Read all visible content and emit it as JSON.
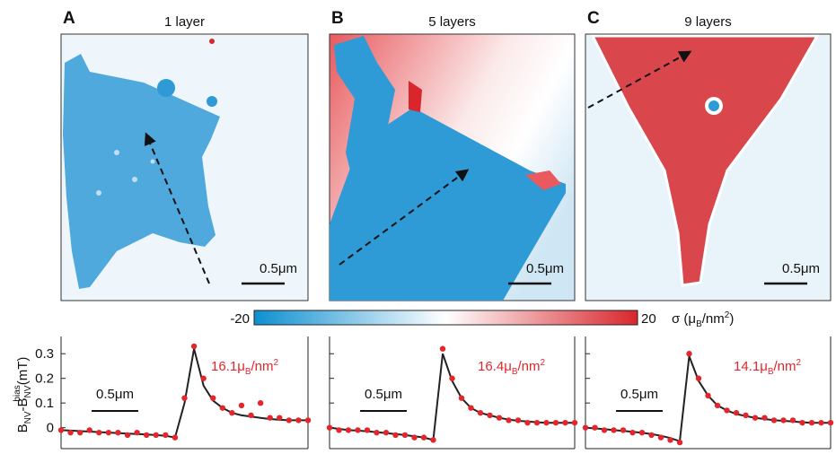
{
  "colorbar": {
    "min": -20,
    "max": 20,
    "label": [
      "σ (μ",
      "B",
      "/nm",
      "2",
      ")"
    ]
  },
  "chart_data": [
    {
      "type": "scatter",
      "panel": "A",
      "title": "1 layer",
      "map_scale": "0.5μm",
      "scale": "0.5μm",
      "ylabel": [
        "B",
        "NV",
        "-B",
        "NV",
        "bias",
        "(mT)"
      ],
      "annotation": [
        "16.1μ",
        "B",
        "/nm",
        "2"
      ],
      "x": [
        0,
        0.1,
        0.2,
        0.3,
        0.4,
        0.5,
        0.6,
        0.7,
        0.8,
        0.9,
        1.0,
        1.1,
        1.2,
        1.3,
        1.4,
        1.5,
        1.6,
        1.7,
        1.8,
        1.9,
        2.0,
        2.1,
        2.2,
        2.3,
        2.4,
        2.5,
        2.6
      ],
      "series": [
        {
          "type": "scatter",
          "color": "#e3262b",
          "values": [
            -0.01,
            -0.02,
            -0.02,
            -0.01,
            -0.02,
            -0.02,
            -0.02,
            -0.03,
            -0.02,
            -0.03,
            -0.03,
            -0.03,
            -0.04,
            0.12,
            0.33,
            0.2,
            0.12,
            0.08,
            0.06,
            0.09,
            0.05,
            0.1,
            0.04,
            0.04,
            0.03,
            0.03,
            0.03
          ]
        },
        {
          "type": "line",
          "color": "#222222",
          "values": [
            -0.01,
            -0.012,
            -0.014,
            -0.016,
            -0.018,
            -0.02,
            -0.022,
            -0.024,
            -0.026,
            -0.028,
            -0.03,
            -0.033,
            -0.04,
            0.1,
            0.32,
            0.17,
            0.11,
            0.08,
            0.06,
            0.05,
            0.045,
            0.04,
            0.035,
            0.032,
            0.03,
            0.03,
            0.03
          ]
        }
      ],
      "xlim": [
        0,
        2.6
      ],
      "ylim": [
        -0.085,
        0.37
      ],
      "yticks": [
        0,
        0.1,
        0.2,
        0.3
      ]
    },
    {
      "type": "scatter",
      "panel": "B",
      "title": "5 layers",
      "map_scale": "0.5μm",
      "scale": "0.5μm",
      "annotation": [
        "16.4μ",
        "B",
        "/nm",
        "2"
      ],
      "x": [
        0,
        0.1,
        0.2,
        0.3,
        0.4,
        0.5,
        0.6,
        0.7,
        0.8,
        0.9,
        1.0,
        1.1,
        1.2,
        1.3,
        1.4,
        1.5,
        1.6,
        1.7,
        1.8,
        1.9,
        2.0,
        2.1,
        2.2,
        2.3,
        2.4,
        2.5,
        2.6
      ],
      "series": [
        {
          "type": "scatter",
          "color": "#e3262b",
          "values": [
            0,
            -0.01,
            -0.01,
            -0.01,
            -0.01,
            -0.02,
            -0.02,
            -0.03,
            -0.03,
            -0.04,
            -0.04,
            -0.05,
            0.32,
            0.2,
            0.12,
            0.08,
            0.06,
            0.05,
            0.04,
            0.03,
            0.03,
            0.02,
            0.02,
            0.02,
            0.02,
            0.02,
            0.02
          ]
        },
        {
          "type": "line",
          "color": "#222222",
          "values": [
            0,
            -0.005,
            -0.01,
            -0.012,
            -0.015,
            -0.018,
            -0.022,
            -0.026,
            -0.03,
            -0.035,
            -0.04,
            -0.05,
            0.3,
            0.19,
            0.12,
            0.08,
            0.06,
            0.05,
            0.04,
            0.033,
            0.028,
            0.025,
            0.022,
            0.02,
            0.02,
            0.02,
            0.02
          ]
        }
      ],
      "xlim": [
        0,
        2.6
      ],
      "ylim": [
        -0.085,
        0.37
      ]
    },
    {
      "type": "scatter",
      "panel": "C",
      "title": "9 layers",
      "map_scale": "0.5μm",
      "scale": "0.5μm",
      "annotation": [
        "14.1μ",
        "B",
        "/nm",
        "2"
      ],
      "x": [
        0,
        0.1,
        0.2,
        0.3,
        0.4,
        0.5,
        0.6,
        0.7,
        0.8,
        0.9,
        1.0,
        1.1,
        1.2,
        1.3,
        1.4,
        1.5,
        1.6,
        1.7,
        1.8,
        1.9,
        2.0,
        2.1,
        2.2,
        2.3,
        2.4,
        2.5,
        2.6
      ],
      "series": [
        {
          "type": "scatter",
          "color": "#e3262b",
          "values": [
            0,
            0,
            -0.01,
            -0.01,
            -0.01,
            -0.02,
            -0.02,
            -0.03,
            -0.04,
            -0.05,
            -0.06,
            0.3,
            0.2,
            0.13,
            0.09,
            0.07,
            0.06,
            0.05,
            0.04,
            0.04,
            0.03,
            0.03,
            0.03,
            0.02,
            0.02,
            0.02,
            0.02
          ]
        },
        {
          "type": "line",
          "color": "#222222",
          "values": [
            0,
            -0.003,
            -0.006,
            -0.01,
            -0.013,
            -0.017,
            -0.021,
            -0.026,
            -0.033,
            -0.042,
            -0.055,
            0.29,
            0.19,
            0.13,
            0.09,
            0.07,
            0.055,
            0.047,
            0.04,
            0.035,
            0.03,
            0.028,
            0.025,
            0.022,
            0.02,
            0.02,
            0.02
          ]
        }
      ],
      "xlim": [
        0,
        2.6
      ],
      "ylim": [
        -0.085,
        0.37
      ]
    }
  ]
}
